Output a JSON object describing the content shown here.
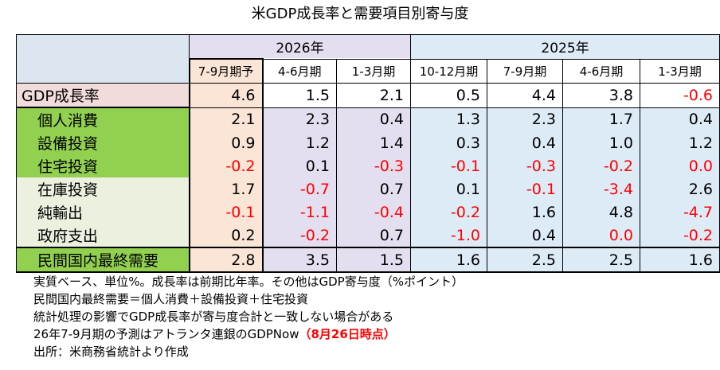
{
  "title": "米GDP成長率と需要項目別寄与度",
  "years": {
    "y2026": "2026年",
    "y2025": "2025年"
  },
  "quarters": [
    "7-9月期予",
    "4-6月期",
    "1-3月期",
    "10-12月期",
    "7-9月期",
    "4-6月期",
    "1-3月期"
  ],
  "rows": [
    {
      "label": "GDP成長率",
      "values": [
        "4.6",
        "1.5",
        "2.1",
        "0.5",
        "4.4",
        "3.8",
        "-0.6"
      ]
    },
    {
      "label": "個人消費",
      "values": [
        "2.1",
        "2.3",
        "0.4",
        "1.3",
        "2.3",
        "1.7",
        "0.4"
      ]
    },
    {
      "label": "設備投資",
      "values": [
        "0.9",
        "1.2",
        "1.4",
        "0.3",
        "0.4",
        "1.0",
        "1.2"
      ]
    },
    {
      "label": "住宅投資",
      "values": [
        "-0.2",
        "0.1",
        "-0.3",
        "-0.1",
        "-0.3",
        "-0.2",
        "0.0"
      ]
    },
    {
      "label": "在庫投資",
      "values": [
        "1.7",
        "-0.7",
        "0.7",
        "0.1",
        "-0.1",
        "-3.4",
        "2.6"
      ]
    },
    {
      "label": "純輸出",
      "values": [
        "-0.1",
        "-1.1",
        "-0.4",
        "-0.2",
        "1.6",
        "4.8",
        "-4.7"
      ]
    },
    {
      "label": "政府支出",
      "values": [
        "0.2",
        "-0.2",
        "0.7",
        "-1.0",
        "0.4",
        "0.0",
        "-0.2"
      ]
    },
    {
      "label": "民間国内最終需要",
      "values": [
        "2.8",
        "3.5",
        "1.5",
        "1.6",
        "2.5",
        "2.5",
        "1.6"
      ]
    }
  ],
  "negative_cells": [
    [
      0,
      6
    ],
    [
      3,
      0
    ],
    [
      3,
      2
    ],
    [
      3,
      3
    ],
    [
      3,
      4
    ],
    [
      3,
      5
    ],
    [
      3,
      6
    ],
    [
      4,
      1
    ],
    [
      4,
      4
    ],
    [
      4,
      5
    ],
    [
      5,
      0
    ],
    [
      5,
      1
    ],
    [
      5,
      2
    ],
    [
      5,
      3
    ],
    [
      5,
      6
    ],
    [
      6,
      1
    ],
    [
      6,
      3
    ],
    [
      6,
      5
    ],
    [
      6,
      6
    ]
  ],
  "notes": [
    "実質ベース、単位%。成長率は前期比年率。その他はGDP寄与度（%ポイント）",
    "民間国内最終需要＝個人消費＋設備投資＋住宅投資",
    "統計処理の影響でGDP成長率が寄与度合計と一致しない場合がある"
  ],
  "note4": {
    "text": "26年7-9月期の予測はアトランタ連銀のGDPNow",
    "highlight": "（8月26日時点）"
  },
  "note5": "出所：米商務省統計より作成",
  "colors": {
    "negative": "#ff0000",
    "green": "#92d050",
    "pred": "#fbe5d6",
    "q2026": "#e4dff0",
    "q2025": "#ddebf7"
  }
}
